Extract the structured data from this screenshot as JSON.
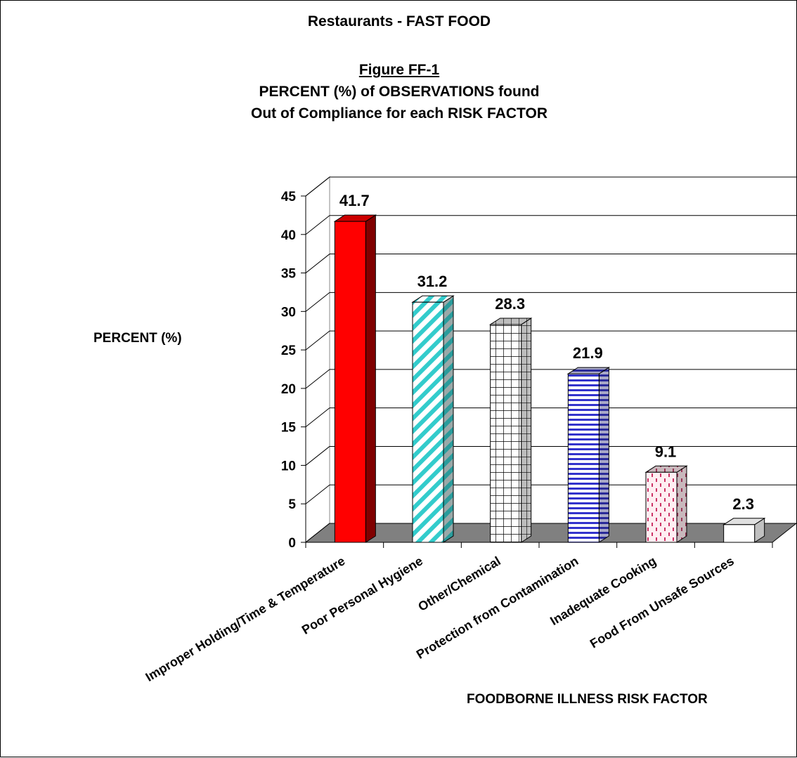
{
  "chart": {
    "header": "Restaurants - FAST FOOD",
    "figure_label": "Figure FF-1",
    "title_line1": "PERCENT (%) of OBSERVATIONS found",
    "title_line2": "Out of Compliance for each RISK FACTOR",
    "ylabel": "PERCENT (%)",
    "xlabel": "FOODBORNE ILLNESS RISK FACTOR"
  },
  "chart_data": {
    "type": "bar",
    "title": "PERCENT (%) of OBSERVATIONS found Out of Compliance for each RISK FACTOR",
    "xlabel": "FOODBORNE ILLNESS RISK FACTOR",
    "ylabel": "PERCENT (%)",
    "ylim": [
      0,
      45
    ],
    "yticks": [
      0,
      5,
      10,
      15,
      20,
      25,
      30,
      35,
      40,
      45
    ],
    "grid": true,
    "categories": [
      "Improper Holding/Time & Temperature",
      "Poor Personal Hygiene",
      "Other/Chemical",
      "Protection from Contamination",
      "Inadequate Cooking",
      "Food From Unsafe Sources"
    ],
    "values": [
      41.7,
      31.2,
      28.3,
      21.9,
      9.1,
      2.3
    ],
    "data_labels": [
      "41.7",
      "31.2",
      "28.3",
      "21.9",
      "9.1",
      "2.3"
    ],
    "colors": [
      "#ff0000",
      "#33cccc",
      "#ffffff",
      "#3333cc",
      "#cc6699",
      "#ffffff"
    ]
  }
}
